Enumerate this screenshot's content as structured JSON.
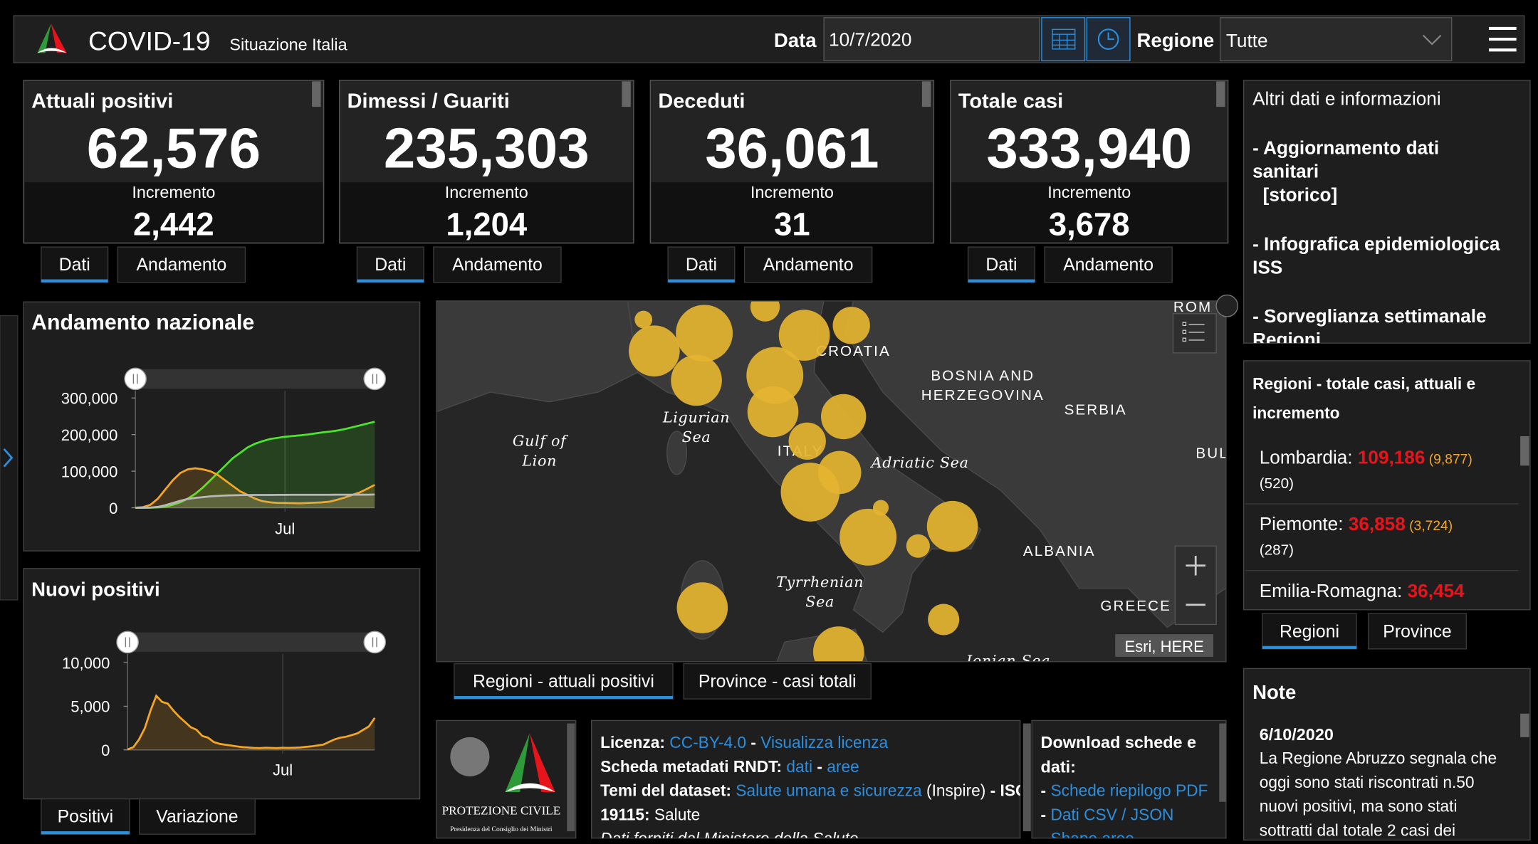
{
  "header": {
    "title": "COVID-19",
    "subtitle": "Situazione Italia",
    "date_label": "Data",
    "date_value": "10/7/2020",
    "region_label": "Regione",
    "region_value": "Tutte"
  },
  "cards": [
    {
      "title": "Attuali positivi",
      "value": "62,576",
      "increment_label": "Incremento",
      "increment": "2,442",
      "color": "#f5a623",
      "tabs": [
        "Dati",
        "Andamento"
      ]
    },
    {
      "title": "Dimessi / Guariti",
      "value": "235,303",
      "increment_label": "Incremento",
      "increment": "1,204",
      "color": "#4ee42a",
      "tabs": [
        "Dati",
        "Andamento"
      ]
    },
    {
      "title": "Deceduti",
      "value": "36,061",
      "increment_label": "Incremento",
      "increment": "31",
      "color": "#a8a8a8",
      "tabs": [
        "Dati",
        "Andamento"
      ]
    },
    {
      "title": "Totale casi",
      "value": "333,940",
      "increment_label": "Incremento",
      "increment": "3,678",
      "color": "#e8141c",
      "tabs": [
        "Dati",
        "Andamento"
      ]
    }
  ],
  "info_panel": {
    "title": "Altri dati e informazioni",
    "items": [
      [
        "- Aggiornamento dati",
        "sanitari",
        "  [storico]"
      ],
      [
        "- Infografica epidemiologica",
        "ISS"
      ],
      [
        "- Sorveglianza settimanale",
        "Regioni"
      ]
    ]
  },
  "regions_panel": {
    "title": [
      "Regioni - totale casi, attuali e",
      "incremento"
    ],
    "rows": [
      {
        "name": "Lombardia: ",
        "total": "109,186",
        "current": " (9,877)",
        "increment": "(520)"
      },
      {
        "name": "Piemonte: ",
        "total": "36,858",
        "current": " (3,724)",
        "increment": "(287)"
      },
      {
        "name": "Emilia-Romagna: ",
        "total": "36,454"
      }
    ],
    "tabs": [
      "Regioni",
      "Province"
    ]
  },
  "notes_panel": {
    "title": "Note",
    "date": "6/10/2020",
    "lines": [
      "La Regione Abruzzo segnala che",
      "oggi sono stati riscontrati n.50",
      "nuovi positivi, ma sono stati",
      "sottratti dal totale 2 casi dei"
    ]
  },
  "chart_data": [
    {
      "type": "line",
      "title": "Andamento nazionale",
      "categories": [
        null,
        null,
        null,
        null,
        null,
        null,
        null,
        null,
        null,
        null,
        null,
        null,
        null,
        null,
        null,
        null,
        null,
        null,
        null,
        null,
        "Jul",
        null,
        null,
        null,
        null,
        null,
        null,
        null,
        null,
        null,
        null,
        null,
        null
      ],
      "series": [
        {
          "color": "#4ee42a",
          "values": [
            0,
            0,
            400,
            1000,
            3000,
            8000,
            15000,
            25000,
            38000,
            55000,
            75000,
            95000,
            115000,
            135000,
            150000,
            165000,
            175000,
            182000,
            188000,
            191000,
            194000,
            196000,
            198000,
            200000,
            203000,
            206000,
            208000,
            211000,
            215000,
            220000,
            225000,
            230000,
            235303
          ]
        },
        {
          "color": "#f5a623",
          "values": [
            300,
            1500,
            8000,
            25000,
            50000,
            75000,
            95000,
            105000,
            108000,
            105000,
            100000,
            90000,
            75000,
            60000,
            45000,
            35000,
            25000,
            18000,
            15000,
            13500,
            13000,
            12500,
            12400,
            13000,
            14000,
            15000,
            17000,
            22000,
            28000,
            35000,
            42000,
            52000,
            62576
          ]
        },
        {
          "color": "#b8b8b8",
          "values": [
            10,
            50,
            500,
            2500,
            7000,
            13000,
            19000,
            24000,
            27000,
            29000,
            31000,
            32500,
            33500,
            34000,
            34500,
            34800,
            35000,
            35000,
            35200,
            35300,
            35400,
            35500,
            35500,
            35500,
            35600,
            35600,
            35700,
            35800,
            35800,
            35900,
            35900,
            36000,
            36061
          ]
        }
      ],
      "ylim": [
        0,
        320000
      ],
      "yticks": [
        0,
        {
          "value": 100000,
          "label": "100,000"
        },
        {
          "value": 200000,
          "label": "200,000"
        },
        {
          "value": 300000,
          "label": "300,000"
        }
      ]
    },
    {
      "type": "line",
      "title": "Nuovi positivi",
      "categories": [
        null,
        null,
        null,
        null,
        null,
        null,
        null,
        null,
        null,
        null,
        null,
        null,
        null,
        null,
        null,
        null,
        null,
        null,
        null,
        null,
        null,
        null,
        null,
        null,
        null,
        null,
        null,
        "Jul",
        null,
        null,
        null,
        null,
        null,
        null,
        null,
        null,
        null,
        null,
        null,
        null,
        null,
        null,
        null,
        null
      ],
      "series": [
        {
          "color": "#f5a623",
          "values": [
            50,
            300,
            1200,
            2500,
            4500,
            6200,
            5500,
            5300,
            4500,
            3800,
            3200,
            2600,
            2300,
            1600,
            1400,
            900,
            700,
            600,
            500,
            400,
            320,
            280,
            220,
            200,
            250,
            220,
            200,
            250,
            220,
            250,
            280,
            350,
            400,
            500,
            600,
            900,
            1200,
            1400,
            1500,
            1700,
            1900,
            2300,
            2700,
            3678
          ]
        }
      ],
      "ylim": [
        0,
        11000
      ],
      "yticks": [
        0,
        {
          "value": 5000,
          "label": "5,000"
        },
        {
          "value": 10000,
          "label": "10,000"
        }
      ],
      "tabs": [
        "Positivi",
        "Variazione"
      ]
    }
  ],
  "map": {
    "labels": [
      [
        "ROM"
      ],
      [
        "CROATIA"
      ],
      [
        "BOSNIA AND",
        "HERZEGOVINA"
      ],
      [
        "SERBIA"
      ],
      [
        "BUL"
      ],
      [
        "Gulf of",
        "Lion"
      ],
      [
        "Ligurian",
        "Sea"
      ],
      [
        "ITALY"
      ],
      [
        "Adriatic Sea"
      ],
      [
        "ALBANIA"
      ],
      [
        "Tyrrhenian",
        "Sea"
      ],
      [
        "GREECE"
      ],
      [
        "Ionian Sea"
      ]
    ],
    "attribution": "Esri, HERE",
    "tabs": [
      "Regioni - attuali positivi",
      "Province - casi totali"
    ]
  },
  "footer": {
    "logo_text": "PROTEZIONE CIVILE",
    "logo_subtext": "Presidenza del Consiglio dei Ministri",
    "license_lines": [
      [
        {
          "text": "Licenza: ",
          "style": "bold"
        },
        {
          "text": "CC-BY-4.0",
          "style": "link"
        },
        {
          "text": " - ",
          "style": "bold"
        },
        {
          "text": "Visualizza licenza",
          "style": "link"
        }
      ],
      [
        {
          "text": "Scheda metadati RNDT: ",
          "style": "bold"
        },
        {
          "text": "dati",
          "style": "link"
        },
        {
          "text": " - ",
          "style": "bold"
        },
        {
          "text": "aree",
          "style": "link"
        }
      ],
      [
        {
          "text": "Temi del dataset: ",
          "style": "bold"
        },
        {
          "text": "Salute umana e sicurezza",
          "style": "link"
        },
        {
          "text": " (Inspire)",
          "style": "normal"
        },
        {
          "text": " - ISO",
          "style": "bold"
        }
      ],
      [
        {
          "text": "19115: ",
          "style": "bold"
        },
        {
          "text": "Salute",
          "style": "normal"
        }
      ],
      [
        {
          "text": "Dati forniti dal Ministero della Salute",
          "style": "italic"
        }
      ]
    ],
    "download_title": [
      "Download schede e",
      "dati:"
    ],
    "download_links": [
      [
        {
          "text": "- ",
          "style": "bold"
        },
        {
          "text": "Schede riepilogo PDF",
          "style": "link"
        }
      ],
      [
        {
          "text": "- ",
          "style": "bold"
        },
        {
          "text": "Dati CSV / JSON",
          "style": "link"
        }
      ],
      [
        {
          "text": "- ",
          "style": "bold"
        },
        {
          "text": "Shape aree",
          "style": "link"
        }
      ]
    ]
  }
}
